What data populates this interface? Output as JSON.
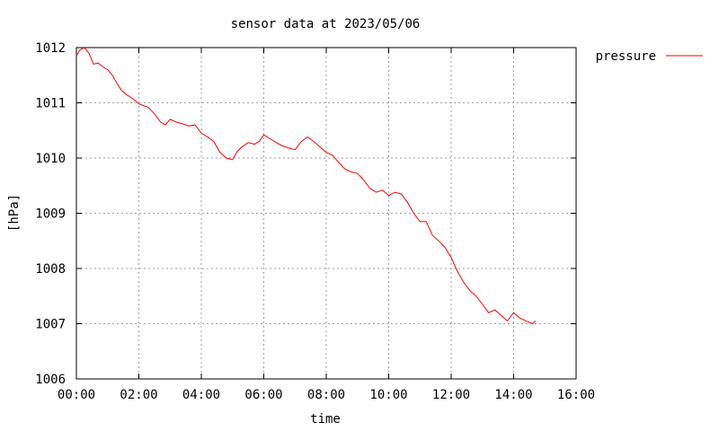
{
  "chart_data": {
    "type": "line",
    "title": "sensor data at 2023/05/06",
    "xlabel": "time",
    "ylabel": "[hPa]",
    "xlim": [
      0,
      16
    ],
    "ylim": [
      1006,
      1012
    ],
    "x_ticks": [
      "00:00",
      "02:00",
      "04:00",
      "06:00",
      "08:00",
      "10:00",
      "12:00",
      "14:00",
      "16:00"
    ],
    "y_ticks": [
      "1006",
      "1007",
      "1008",
      "1009",
      "1010",
      "1011",
      "1012"
    ],
    "grid": true,
    "legend_position": "top-right outside",
    "series": [
      {
        "name": "pressure",
        "color": "#ff0000",
        "x": [
          0.0,
          0.1,
          0.25,
          0.4,
          0.55,
          0.7,
          0.85,
          1.0,
          1.15,
          1.3,
          1.45,
          1.6,
          1.8,
          2.0,
          2.15,
          2.3,
          2.5,
          2.7,
          2.85,
          3.0,
          3.2,
          3.4,
          3.6,
          3.8,
          4.0,
          4.2,
          4.4,
          4.6,
          4.8,
          5.0,
          5.15,
          5.3,
          5.5,
          5.7,
          5.85,
          6.0,
          6.2,
          6.4,
          6.6,
          6.8,
          7.0,
          7.2,
          7.4,
          7.6,
          7.8,
          8.0,
          8.2,
          8.4,
          8.6,
          8.8,
          9.0,
          9.2,
          9.4,
          9.6,
          9.8,
          10.0,
          10.2,
          10.4,
          10.6,
          10.8,
          11.0,
          11.2,
          11.4,
          11.6,
          11.8,
          12.0,
          12.2,
          12.4,
          12.6,
          12.8,
          13.0,
          13.2,
          13.4,
          13.6,
          13.8,
          14.0,
          14.2,
          14.4,
          14.6,
          14.7
        ],
        "values": [
          1011.85,
          1011.95,
          1012.0,
          1011.9,
          1011.7,
          1011.72,
          1011.65,
          1011.6,
          1011.5,
          1011.35,
          1011.22,
          1011.15,
          1011.08,
          1010.98,
          1010.95,
          1010.92,
          1010.8,
          1010.65,
          1010.6,
          1010.7,
          1010.65,
          1010.62,
          1010.58,
          1010.6,
          1010.45,
          1010.38,
          1010.3,
          1010.1,
          1010.0,
          1009.97,
          1010.12,
          1010.2,
          1010.28,
          1010.25,
          1010.3,
          1010.42,
          1010.35,
          1010.28,
          1010.22,
          1010.18,
          1010.15,
          1010.3,
          1010.38,
          1010.3,
          1010.2,
          1010.1,
          1010.05,
          1009.92,
          1009.8,
          1009.75,
          1009.72,
          1009.6,
          1009.45,
          1009.38,
          1009.42,
          1009.32,
          1009.38,
          1009.35,
          1009.2,
          1009.0,
          1008.85,
          1008.85,
          1008.6,
          1008.5,
          1008.38,
          1008.2,
          1007.95,
          1007.75,
          1007.6,
          1007.5,
          1007.35,
          1007.2,
          1007.25,
          1007.15,
          1007.05,
          1007.2,
          1007.1,
          1007.05,
          1007.0,
          1007.05
        ]
      }
    ]
  }
}
